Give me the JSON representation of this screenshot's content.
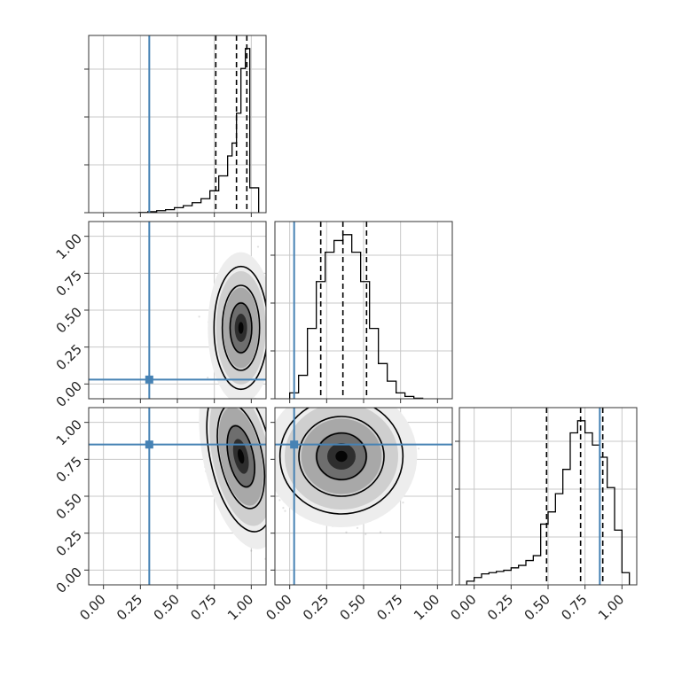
{
  "chart_data": {
    "type": "corner",
    "n_params": 3,
    "axis_range": [
      -0.1,
      1.1
    ],
    "tick_values": [
      0,
      0.25,
      0.5,
      0.75,
      1.0
    ],
    "tick_labels": [
      "0.00",
      "0.25",
      "0.50",
      "0.75",
      "1.00"
    ],
    "grid": true,
    "truth_color": "#4682b4",
    "truths": [
      0.31,
      0.03,
      0.85
    ],
    "quantiles": [
      [
        0.76,
        0.9,
        0.97
      ],
      [
        0.21,
        0.36,
        0.52
      ],
      [
        0.49,
        0.72,
        0.87
      ]
    ],
    "histograms": [
      {
        "bin_edges": [
          0.24,
          0.3,
          0.36,
          0.42,
          0.48,
          0.54,
          0.6,
          0.66,
          0.72,
          0.78,
          0.84,
          0.87,
          0.9,
          0.93,
          0.96,
          0.99,
          1.05
        ],
        "counts": [
          0.2,
          1,
          2,
          3,
          5,
          7,
          10,
          14,
          22,
          37,
          57,
          70,
          100,
          145,
          165,
          25
        ]
      },
      {
        "bin_edges": [
          0.0,
          0.06,
          0.12,
          0.18,
          0.24,
          0.3,
          0.36,
          0.42,
          0.48,
          0.54,
          0.6,
          0.66,
          0.72,
          0.78,
          0.84,
          0.9
        ],
        "counts": [
          5,
          20,
          60,
          100,
          125,
          135,
          140,
          125,
          100,
          60,
          30,
          15,
          5,
          2,
          0.5
        ]
      },
      {
        "bin_edges": [
          -0.05,
          0.0,
          0.05,
          0.1,
          0.15,
          0.2,
          0.25,
          0.3,
          0.35,
          0.4,
          0.45,
          0.5,
          0.55,
          0.6,
          0.65,
          0.7,
          0.75,
          0.8,
          0.85,
          0.9,
          0.95,
          1.0,
          1.05
        ],
        "counts": [
          3,
          6,
          9,
          10,
          11,
          12,
          14,
          16,
          20,
          24,
          50,
          60,
          75,
          95,
          125,
          135,
          125,
          115,
          105,
          80,
          45,
          10
        ]
      }
    ],
    "pairs": [
      {
        "row": 1,
        "col": 0,
        "peak": [
          0.93,
          0.38
        ],
        "sd": [
          0.07,
          0.16
        ],
        "rho": 0.0
      },
      {
        "row": 2,
        "col": 0,
        "peak": [
          0.93,
          0.77
        ],
        "sd": [
          0.08,
          0.2
        ],
        "rho": -0.4
      },
      {
        "row": 2,
        "col": 1,
        "peak": [
          0.35,
          0.77
        ],
        "sd": [
          0.16,
          0.15
        ],
        "rho": 0.0
      }
    ]
  }
}
